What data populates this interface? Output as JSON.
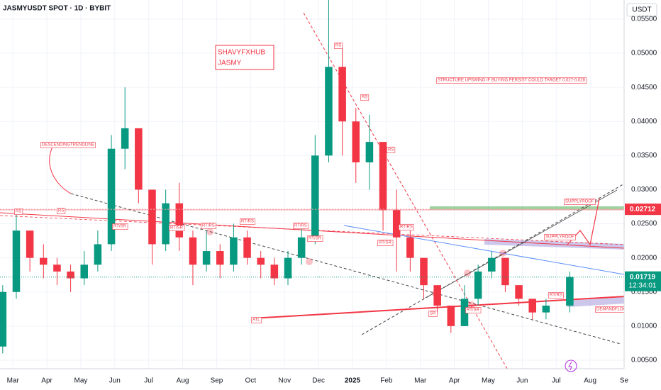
{
  "chart_data": {
    "type": "candlestick",
    "title": "JASMYUSDT SPOT · 1D · BYBIT",
    "currency": "USDT",
    "watermark": [
      "SHAVYFXHUB",
      "JASMY"
    ],
    "annotations": [
      "STRUCTURE  UPSWING IF BUYING PERSIST COULD TARGET 0.027-0.028",
      "DESCENDINGTRENDLINE",
      "SUPPLYROOF",
      "SUPPLYROOF",
      "DEMANDFLOOR",
      "ATL",
      "RS",
      "RS",
      "RT/SR",
      "RT/SR",
      "RT/RS",
      "RT/RS",
      "RT/RS",
      "RT/SR",
      "RS",
      "RS",
      "RS",
      "RT/RS",
      "RT/SR",
      "SR",
      "RT/SR",
      "RT/RS"
    ],
    "x": [
      -0.3,
      0.1,
      0.5,
      0.9,
      1.3,
      1.7,
      2.1,
      2.5,
      2.9,
      3.3,
      3.7,
      4.1,
      4.5,
      4.9,
      5.3,
      5.7,
      6.1,
      6.5,
      6.9,
      7.3,
      7.7,
      8.1,
      8.5,
      8.9,
      9.3,
      9.7,
      10.1,
      10.5,
      10.9,
      11.3,
      11.7,
      12.1,
      12.5,
      12.9,
      13.3,
      13.7,
      14.1,
      14.5,
      14.9,
      15.3,
      15.7,
      16.4
    ],
    "values": [
      [
        0.007,
        0.016,
        0.006,
        0.015
      ],
      [
        0.015,
        0.027,
        0.014,
        0.024
      ],
      [
        0.024,
        0.024,
        0.018,
        0.02
      ],
      [
        0.02,
        0.022,
        0.017,
        0.019
      ],
      [
        0.019,
        0.02,
        0.016,
        0.018
      ],
      [
        0.018,
        0.019,
        0.015,
        0.017
      ],
      [
        0.017,
        0.021,
        0.016,
        0.019
      ],
      [
        0.019,
        0.024,
        0.018,
        0.022
      ],
      [
        0.022,
        0.038,
        0.021,
        0.036
      ],
      [
        0.036,
        0.045,
        0.033,
        0.039
      ],
      [
        0.039,
        0.036,
        0.028,
        0.03
      ],
      [
        0.03,
        0.03,
        0.019,
        0.022
      ],
      [
        0.022,
        0.03,
        0.021,
        0.028
      ],
      [
        0.028,
        0.031,
        0.021,
        0.023
      ],
      [
        0.023,
        0.024,
        0.016,
        0.019
      ],
      [
        0.019,
        0.024,
        0.018,
        0.021
      ],
      [
        0.021,
        0.022,
        0.017,
        0.019
      ],
      [
        0.019,
        0.025,
        0.018,
        0.023
      ],
      [
        0.023,
        0.024,
        0.019,
        0.02
      ],
      [
        0.02,
        0.021,
        0.017,
        0.019
      ],
      [
        0.019,
        0.02,
        0.016,
        0.017
      ],
      [
        0.017,
        0.021,
        0.016,
        0.02
      ],
      [
        0.02,
        0.025,
        0.019,
        0.023
      ],
      [
        0.023,
        0.038,
        0.022,
        0.035
      ],
      [
        0.035,
        0.058,
        0.034,
        0.048
      ],
      [
        0.048,
        0.051,
        0.035,
        0.04
      ],
      [
        0.04,
        0.042,
        0.031,
        0.034
      ],
      [
        0.034,
        0.041,
        0.03,
        0.037
      ],
      [
        0.037,
        0.035,
        0.024,
        0.027
      ],
      [
        0.027,
        0.03,
        0.018,
        0.023
      ],
      [
        0.023,
        0.024,
        0.018,
        0.02
      ],
      [
        0.02,
        0.02,
        0.014,
        0.016
      ],
      [
        0.016,
        0.016,
        0.012,
        0.013
      ],
      [
        0.013,
        0.013,
        0.009,
        0.01
      ],
      [
        0.01,
        0.016,
        0.01,
        0.014
      ],
      [
        0.014,
        0.019,
        0.013,
        0.018
      ],
      [
        0.018,
        0.021,
        0.017,
        0.02
      ],
      [
        0.02,
        0.02,
        0.015,
        0.016
      ],
      [
        0.016,
        0.016,
        0.013,
        0.014
      ],
      [
        0.014,
        0.014,
        0.011,
        0.012
      ],
      [
        0.012,
        0.014,
        0.011,
        0.013
      ],
      [
        0.013,
        0.018,
        0.012,
        0.01719
      ]
    ],
    "up_color": "#089981",
    "down_color": "#f23645",
    "last_price": 0.01719,
    "countdown": "12:34:01",
    "level": 0.02712,
    "xlim": [
      -0.38,
      18.0
    ],
    "xticks": [
      {
        "value": 0,
        "label": "Mar"
      },
      {
        "value": 1,
        "label": "Apr"
      },
      {
        "value": 2,
        "label": "May"
      },
      {
        "value": 3,
        "label": "Jun"
      },
      {
        "value": 4,
        "label": "Jul"
      },
      {
        "value": 5,
        "label": "Aug"
      },
      {
        "value": 6,
        "label": "Sep"
      },
      {
        "value": 7,
        "label": "Oct"
      },
      {
        "value": 8,
        "label": "Nov"
      },
      {
        "value": 9,
        "label": "Dec"
      },
      {
        "value": 10,
        "label": "2025"
      },
      {
        "value": 11,
        "label": "Feb"
      },
      {
        "value": 12,
        "label": "Mar"
      },
      {
        "value": 13,
        "label": "Apr"
      },
      {
        "value": 14,
        "label": "May"
      },
      {
        "value": 15,
        "label": "Jun"
      },
      {
        "value": 16,
        "label": "Jul"
      },
      {
        "value": 17,
        "label": "Aug"
      },
      {
        "value": 18,
        "label": "Se"
      }
    ],
    "ylim": [
      0.00375,
      0.0578
    ],
    "yticks": [
      {
        "value": 0.005,
        "label": "0.00500"
      },
      {
        "value": 0.01,
        "label": "0.01000"
      },
      {
        "value": 0.015,
        "label": "0.01500"
      },
      {
        "value": 0.02,
        "label": "0.02000"
      },
      {
        "value": 0.025,
        "label": "0.02500"
      },
      {
        "value": 0.03,
        "label": "0.03000"
      },
      {
        "value": 0.035,
        "label": "0.03500"
      },
      {
        "value": 0.04,
        "label": "0.04000"
      },
      {
        "value": 0.045,
        "label": "0.04500"
      },
      {
        "value": 0.05,
        "label": "0.05000"
      },
      {
        "value": 0.055,
        "label": "0.05500"
      }
    ],
    "grid": true
  }
}
